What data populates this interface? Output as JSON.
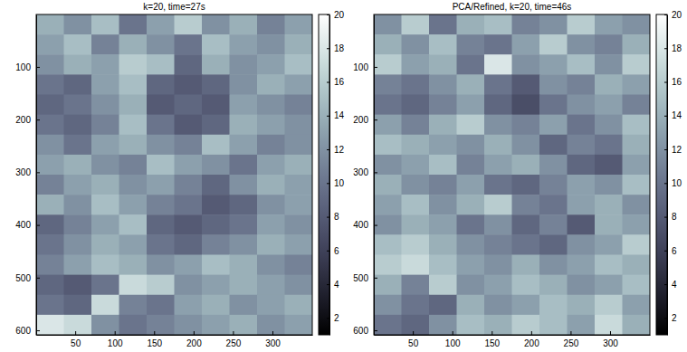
{
  "chart_data": [
    {
      "type": "heatmap",
      "title": "k=20, time=27s",
      "x": [
        18,
        53,
        88,
        123,
        158,
        193,
        228,
        263,
        298,
        333
      ],
      "y": [
        19.5,
        57.5,
        95.5,
        133.5,
        171.5,
        209.5,
        247.5,
        285.5,
        323.5,
        361.5,
        399.5,
        437.5,
        475.5,
        513.5,
        551.5,
        589.5
      ],
      "values": [
        [
          14,
          12,
          15,
          10,
          13,
          16,
          12,
          14,
          11,
          13
        ],
        [
          13,
          15,
          11,
          14,
          12,
          10,
          15,
          13,
          12,
          14
        ],
        [
          12,
          14,
          13,
          16,
          15,
          9,
          14,
          12,
          13,
          15
        ],
        [
          10,
          9,
          13,
          15,
          9,
          8,
          9,
          12,
          14,
          13
        ],
        [
          9,
          10,
          12,
          14,
          8,
          9,
          8,
          13,
          12,
          11
        ],
        [
          10,
          9,
          11,
          15,
          10,
          8,
          9,
          14,
          13,
          12
        ],
        [
          12,
          10,
          13,
          14,
          12,
          11,
          15,
          13,
          11,
          12
        ],
        [
          13,
          14,
          12,
          11,
          15,
          13,
          12,
          10,
          13,
          14
        ],
        [
          11,
          13,
          14,
          12,
          13,
          11,
          9,
          12,
          14,
          13
        ],
        [
          14,
          12,
          15,
          13,
          11,
          10,
          8,
          9,
          12,
          13
        ],
        [
          9,
          11,
          13,
          15,
          9,
          8,
          9,
          10,
          13,
          12
        ],
        [
          10,
          12,
          14,
          13,
          10,
          9,
          11,
          12,
          14,
          13
        ],
        [
          11,
          13,
          15,
          14,
          12,
          13,
          15,
          14,
          12,
          11
        ],
        [
          9,
          8,
          10,
          17,
          16,
          12,
          13,
          14,
          13,
          12
        ],
        [
          10,
          9,
          17,
          11,
          10,
          13,
          14,
          12,
          13,
          14
        ],
        [
          18,
          17,
          12,
          10,
          11,
          12,
          13,
          14,
          12,
          13
        ]
      ],
      "xlim": [
        0.5,
        350.5
      ],
      "ylim": [
        0.5,
        608.5
      ],
      "xticks": [
        50,
        100,
        150,
        200,
        250,
        300
      ],
      "yticks": [
        100,
        200,
        300,
        400,
        500,
        600
      ],
      "colorbar_range": [
        1,
        20
      ],
      "colorbar_ticks": [
        2,
        4,
        6,
        8,
        10,
        12,
        14,
        16,
        18,
        20
      ]
    },
    {
      "type": "heatmap",
      "title": "PCA/Refined, k=20, time=46s",
      "x": [
        18,
        53,
        88,
        123,
        158,
        193,
        228,
        263,
        298,
        333
      ],
      "y": [
        19.5,
        57.5,
        95.5,
        133.5,
        171.5,
        209.5,
        247.5,
        285.5,
        323.5,
        361.5,
        399.5,
        437.5,
        475.5,
        513.5,
        551.5,
        589.5
      ],
      "values": [
        [
          12,
          16,
          10,
          14,
          15,
          11,
          12,
          16,
          13,
          12
        ],
        [
          14,
          12,
          15,
          11,
          10,
          13,
          16,
          12,
          11,
          14
        ],
        [
          16,
          13,
          14,
          10,
          18,
          12,
          13,
          15,
          12,
          16
        ],
        [
          11,
          10,
          12,
          14,
          10,
          8,
          12,
          11,
          14,
          13
        ],
        [
          10,
          9,
          11,
          13,
          9,
          7,
          10,
          12,
          13,
          11
        ],
        [
          13,
          11,
          14,
          16,
          12,
          11,
          13,
          10,
          12,
          15
        ],
        [
          15,
          14,
          13,
          12,
          14,
          12,
          9,
          11,
          10,
          14
        ],
        [
          12,
          13,
          15,
          11,
          13,
          14,
          12,
          9,
          8,
          13
        ],
        [
          14,
          12,
          11,
          13,
          10,
          9,
          11,
          13,
          12,
          15
        ],
        [
          13,
          15,
          12,
          14,
          16,
          11,
          10,
          13,
          14,
          12
        ],
        [
          12,
          14,
          13,
          10,
          12,
          9,
          11,
          8,
          14,
          13
        ],
        [
          15,
          16,
          14,
          12,
          11,
          10,
          9,
          12,
          13,
          16
        ],
        [
          16,
          17,
          15,
          13,
          12,
          14,
          12,
          13,
          15,
          14
        ],
        [
          14,
          11,
          16,
          12,
          13,
          15,
          14,
          12,
          13,
          15
        ],
        [
          12,
          10,
          9,
          14,
          12,
          13,
          15,
          14,
          16,
          13
        ],
        [
          10,
          9,
          12,
          15,
          14,
          16,
          15,
          13,
          17,
          14
        ]
      ],
      "xlim": [
        0.5,
        350.5
      ],
      "ylim": [
        0.5,
        608.5
      ],
      "xticks": [
        50,
        100,
        150,
        200,
        250,
        300
      ],
      "yticks": [
        100,
        200,
        300,
        400,
        500,
        600
      ],
      "colorbar_range": [
        1,
        20
      ],
      "colorbar_ticks": [
        2,
        4,
        6,
        8,
        10,
        12,
        14,
        16,
        18,
        20
      ]
    }
  ]
}
